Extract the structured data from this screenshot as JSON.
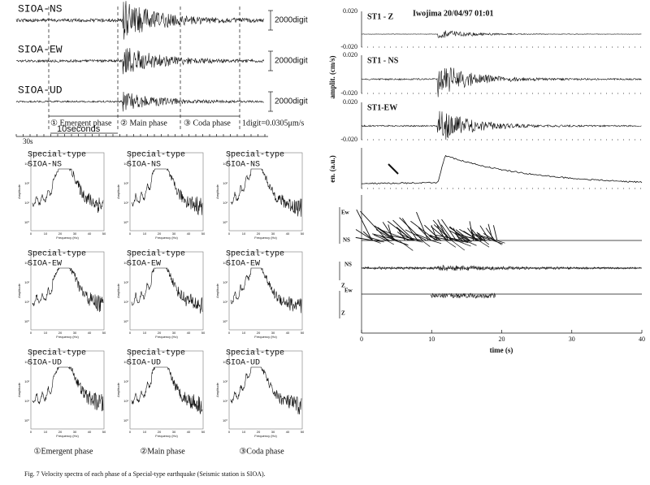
{
  "left_traces": {
    "channels": [
      {
        "label": "SIOA-NS",
        "scale": "2000digit"
      },
      {
        "label": "SIOA-EW",
        "scale": "2000digit"
      },
      {
        "label": "SIOA-UD",
        "scale": "2000digit"
      }
    ],
    "phases": [
      "① Emergent phase",
      "② Main phase",
      "③ Coda phase"
    ],
    "unit": "1digit=0.0305μm/s",
    "duration": "10seconds",
    "offset": "30s"
  },
  "spectra": {
    "panels": [
      {
        "type": "Special-type",
        "station": "SIOA-NS"
      },
      {
        "type": "Special-type",
        "station": "SIOA-NS"
      },
      {
        "type": "Special-type",
        "station": "SIOA-NS"
      },
      {
        "type": "Special-type",
        "station": "SIOA-EW"
      },
      {
        "type": "Special-type",
        "station": "SIOA-EW"
      },
      {
        "type": "Special-type",
        "station": "SIOA-EW"
      },
      {
        "type": "Special-type",
        "station": "SIOA-UD"
      },
      {
        "type": "Special-type",
        "station": "SIOA-UD"
      },
      {
        "type": "Special-type",
        "station": "SIOA-UD"
      }
    ],
    "y_label": "Amplitude",
    "x_label": "Frequency (Hz)",
    "x_ticks": [
      "0",
      "10",
      "20",
      "30",
      "40",
      "50"
    ],
    "y_ticks": [
      "10³",
      "10²",
      "10¹",
      "10⁰"
    ],
    "columns": [
      "①Emergent phase",
      "②Main phase",
      "③Coda phase"
    ]
  },
  "right": {
    "title": "Iwojima 20/04/97 01:01",
    "traces": [
      {
        "label": "ST1 - Z",
        "ymax": "0.020",
        "ymin": "-0.020"
      },
      {
        "label": "ST1 - NS",
        "ymax": "0.020",
        "ymin": "-0.020"
      },
      {
        "label": "ST1-EW",
        "ymax": "0.020",
        "ymin": "-0.020"
      }
    ],
    "y_label": "amplit. (cm/s)",
    "energy_label": "en. (a.u.)",
    "polar_labels": [
      "Ew",
      "NS",
      "NS",
      "Z",
      "Ew",
      "Z"
    ],
    "x_label": "time (s)",
    "x_ticks": [
      "0",
      "10",
      "20",
      "30",
      "40"
    ]
  },
  "caption": "Fig. 7  Velocity spectra of each phase of a Special-type earthquake (Seismic station is SIOA)."
}
